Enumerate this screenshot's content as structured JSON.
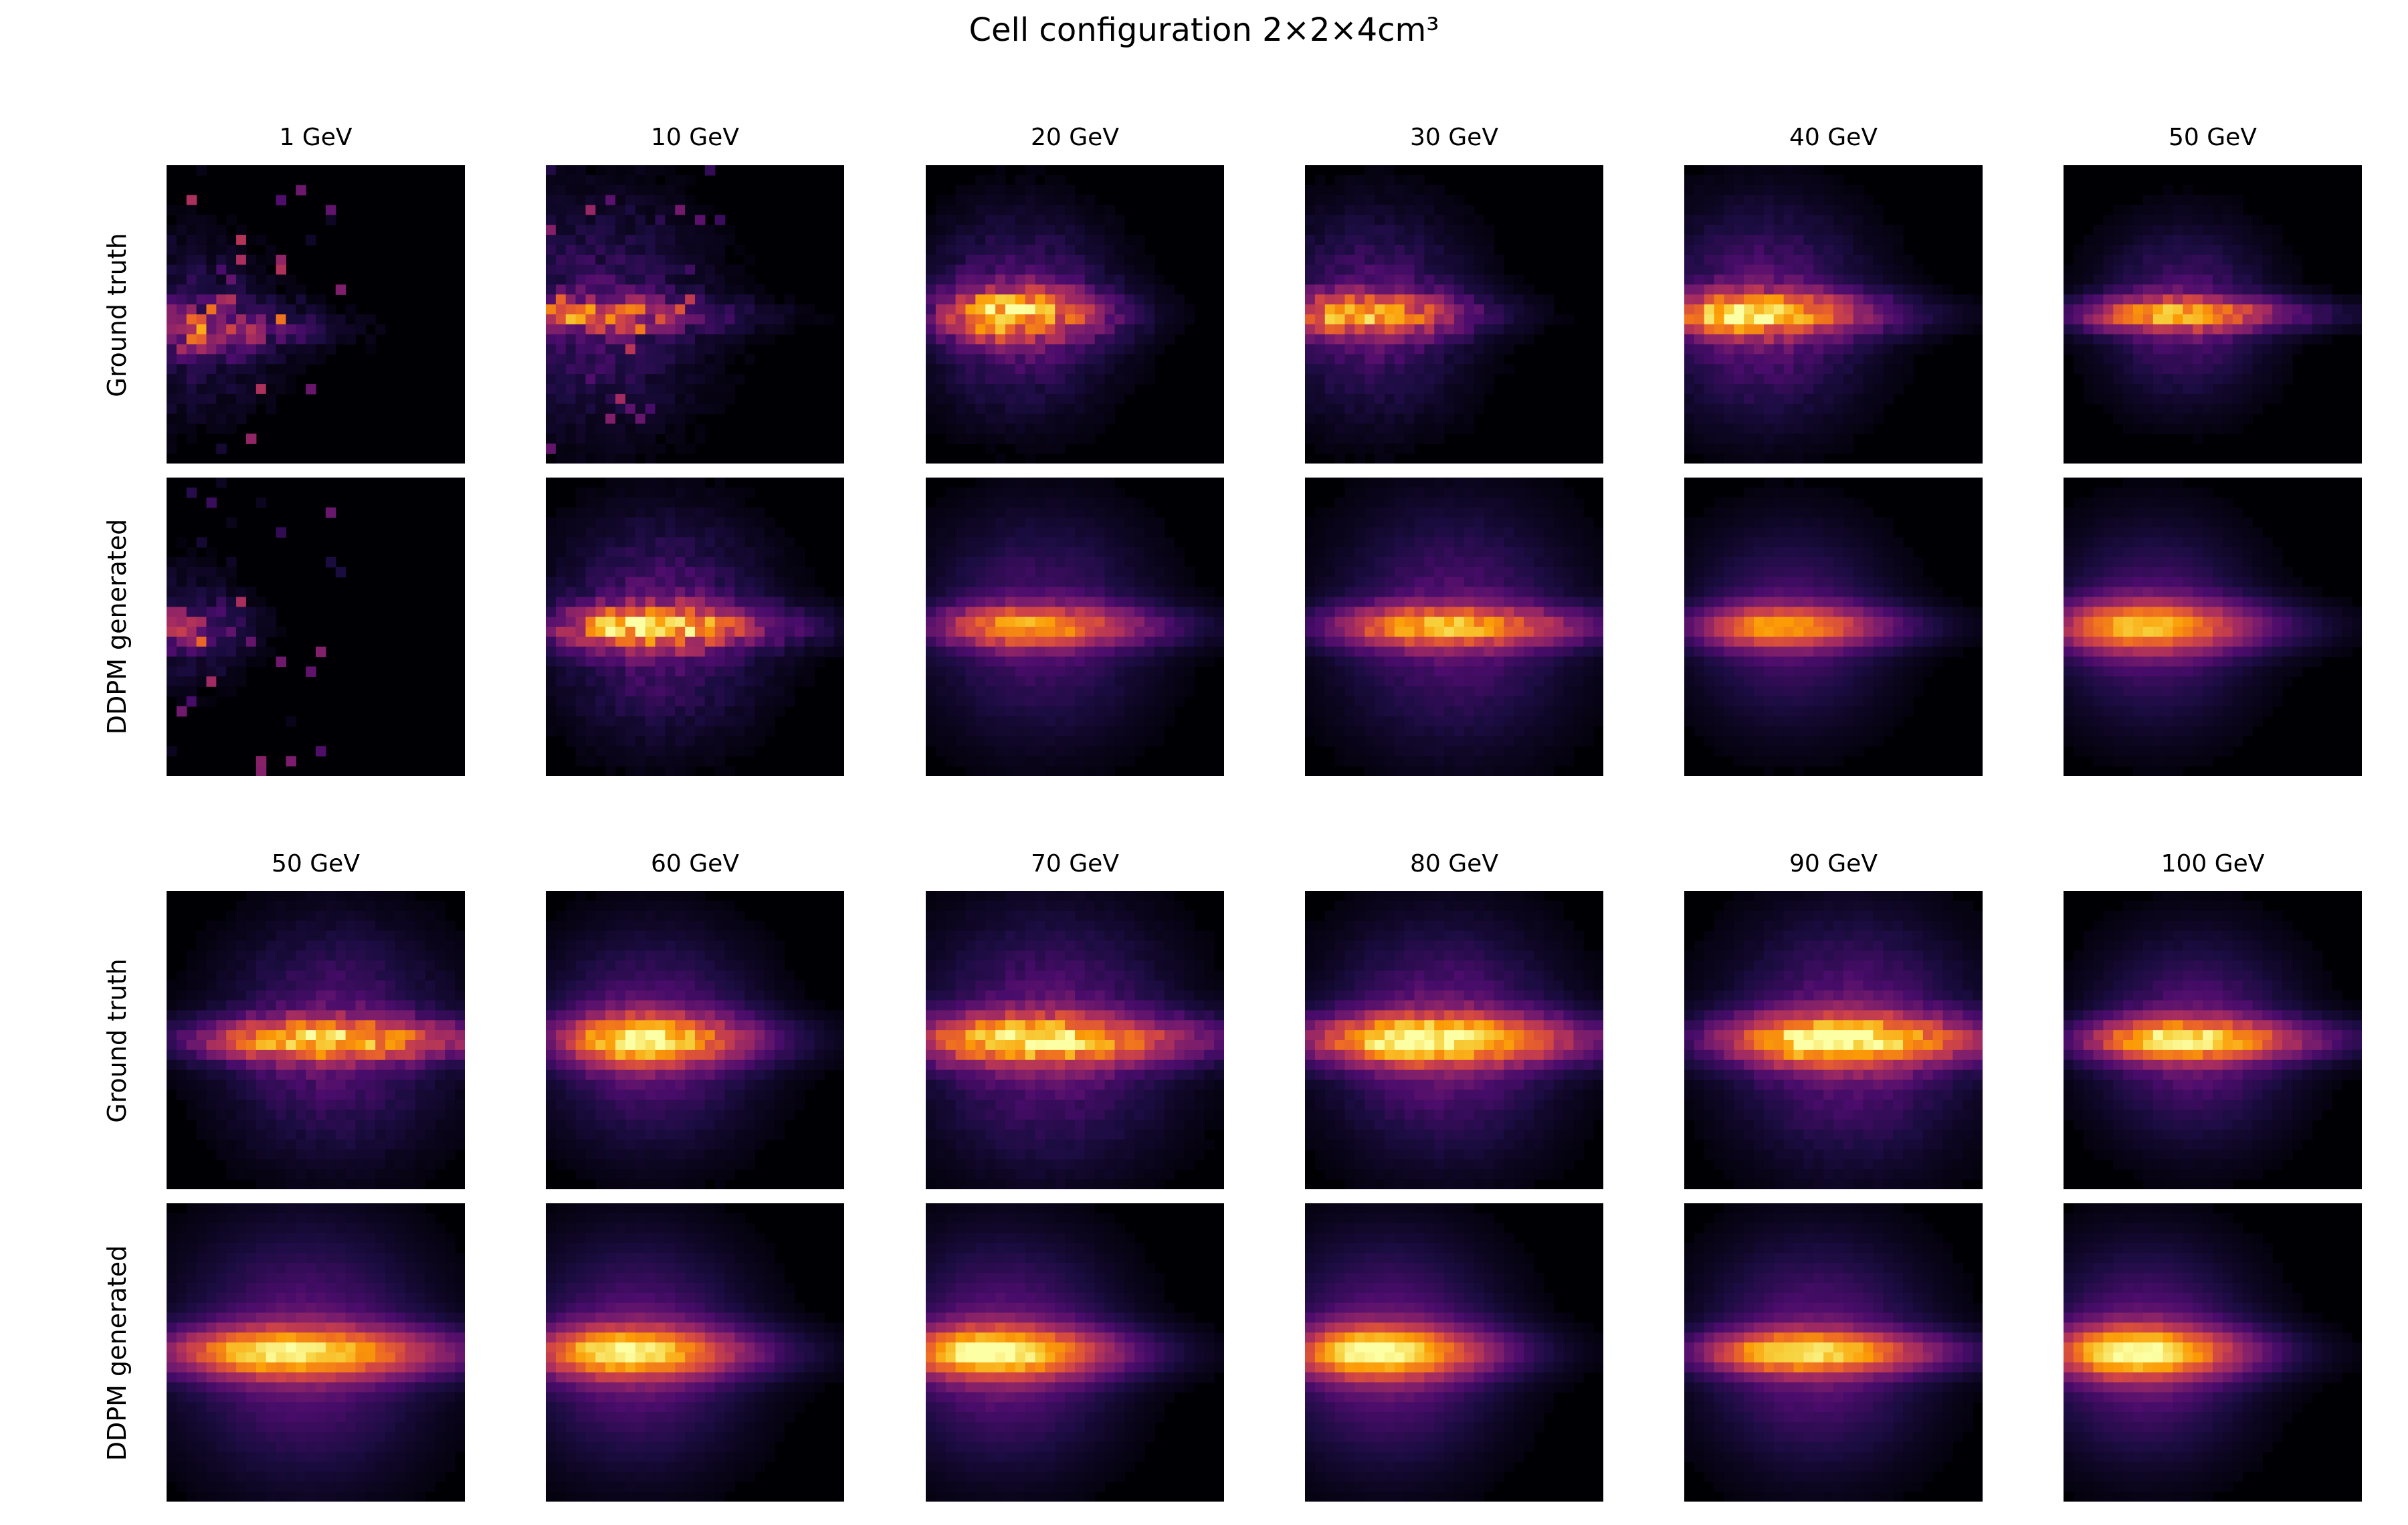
{
  "title": "Cell configuration 2×2×4cm³",
  "row_labels": [
    "Ground truth",
    "DDPM generated"
  ],
  "colormap": "inferno",
  "colormap_stops": [
    "#000004",
    "#1b0c41",
    "#4a0c6b",
    "#781c6d",
    "#a52c60",
    "#cf4446",
    "#ed6925",
    "#fb9b06",
    "#f7d13d",
    "#fcffa4"
  ],
  "chart_data": [
    {
      "type": "heatmap",
      "panel": "top",
      "grid": false,
      "title": "",
      "xlabel": "",
      "ylabel": "",
      "energies_GeV": [
        1,
        10,
        20,
        30,
        40,
        50
      ],
      "column_titles": [
        "1 GeV",
        "10 GeV",
        "20 GeV",
        "30 GeV",
        "40 GeV",
        "50 GeV"
      ],
      "rows": [
        "Ground truth",
        "DDPM generated"
      ],
      "series": [
        {
          "name": "Ground truth",
          "showers": [
            {
              "energy": "1 GeV",
              "peak_x": 0.0,
              "peak_y": 0.55,
              "core_length": 0.5,
              "core_width": 0.05,
              "halo_radius": 0.35,
              "noise": 0.9,
              "intensity": 0.45
            },
            {
              "energy": "10 GeV",
              "peak_x": 0.08,
              "peak_y": 0.5,
              "core_length": 0.55,
              "core_width": 0.04,
              "halo_radius": 0.45,
              "noise": 0.7,
              "intensity": 0.55
            },
            {
              "energy": "20 GeV",
              "peak_x": 0.25,
              "peak_y": 0.5,
              "core_length": 0.4,
              "core_width": 0.06,
              "halo_radius": 0.38,
              "noise": 0.45,
              "intensity": 0.75
            },
            {
              "energy": "30 GeV",
              "peak_x": 0.15,
              "peak_y": 0.5,
              "core_length": 0.45,
              "core_width": 0.05,
              "halo_radius": 0.4,
              "noise": 0.4,
              "intensity": 0.7
            },
            {
              "energy": "40 GeV",
              "peak_x": 0.18,
              "peak_y": 0.5,
              "core_length": 0.55,
              "core_width": 0.05,
              "halo_radius": 0.42,
              "noise": 0.3,
              "intensity": 0.8
            },
            {
              "energy": "50 GeV",
              "peak_x": 0.32,
              "peak_y": 0.5,
              "core_length": 0.55,
              "core_width": 0.04,
              "halo_radius": 0.34,
              "noise": 0.25,
              "intensity": 0.7
            }
          ]
        },
        {
          "name": "DDPM generated",
          "showers": [
            {
              "energy": "1 GeV",
              "peak_x": 0.02,
              "peak_y": 0.5,
              "core_length": 0.25,
              "core_width": 0.05,
              "halo_radius": 0.25,
              "noise": 0.8,
              "intensity": 0.35
            },
            {
              "energy": "10 GeV",
              "peak_x": 0.3,
              "peak_y": 0.5,
              "core_length": 0.55,
              "core_width": 0.05,
              "halo_radius": 0.42,
              "noise": 0.45,
              "intensity": 0.75
            },
            {
              "energy": "20 GeV",
              "peak_x": 0.3,
              "peak_y": 0.5,
              "core_length": 0.55,
              "core_width": 0.05,
              "halo_radius": 0.45,
              "noise": 0.2,
              "intensity": 0.65
            },
            {
              "energy": "30 GeV",
              "peak_x": 0.4,
              "peak_y": 0.5,
              "core_length": 0.65,
              "core_width": 0.05,
              "halo_radius": 0.48,
              "noise": 0.2,
              "intensity": 0.7
            },
            {
              "energy": "40 GeV",
              "peak_x": 0.28,
              "peak_y": 0.5,
              "core_length": 0.5,
              "core_width": 0.05,
              "halo_radius": 0.4,
              "noise": 0.1,
              "intensity": 0.65
            },
            {
              "energy": "50 GeV",
              "peak_x": 0.22,
              "peak_y": 0.5,
              "core_length": 0.55,
              "core_width": 0.06,
              "halo_radius": 0.4,
              "noise": 0.1,
              "intensity": 0.7
            }
          ]
        }
      ]
    },
    {
      "type": "heatmap",
      "panel": "bottom",
      "grid": false,
      "title": "",
      "xlabel": "",
      "ylabel": "",
      "energies_GeV": [
        50,
        60,
        70,
        80,
        90,
        100
      ],
      "column_titles": [
        "50 GeV",
        "60 GeV",
        "70 GeV",
        "80 GeV",
        "90 GeV",
        "100 GeV"
      ],
      "rows": [
        "Ground truth",
        "DDPM generated"
      ],
      "series": [
        {
          "name": "Ground truth",
          "showers": [
            {
              "energy": "50 GeV",
              "peak_x": 0.45,
              "peak_y": 0.5,
              "core_length": 0.75,
              "core_width": 0.05,
              "halo_radius": 0.45,
              "noise": 0.3,
              "intensity": 0.75
            },
            {
              "energy": "60 GeV",
              "peak_x": 0.28,
              "peak_y": 0.5,
              "core_length": 0.5,
              "core_width": 0.06,
              "halo_radius": 0.42,
              "noise": 0.2,
              "intensity": 0.8
            },
            {
              "energy": "70 GeV",
              "peak_x": 0.3,
              "peak_y": 0.5,
              "core_length": 0.75,
              "core_width": 0.06,
              "halo_radius": 0.5,
              "noise": 0.25,
              "intensity": 0.8
            },
            {
              "energy": "80 GeV",
              "peak_x": 0.35,
              "peak_y": 0.5,
              "core_length": 0.75,
              "core_width": 0.06,
              "halo_radius": 0.46,
              "noise": 0.2,
              "intensity": 0.85
            },
            {
              "energy": "90 GeV",
              "peak_x": 0.45,
              "peak_y": 0.5,
              "core_length": 0.7,
              "core_width": 0.06,
              "halo_radius": 0.48,
              "noise": 0.2,
              "intensity": 0.85
            },
            {
              "energy": "100 GeV",
              "peak_x": 0.35,
              "peak_y": 0.5,
              "core_length": 0.6,
              "core_width": 0.05,
              "halo_radius": 0.4,
              "noise": 0.15,
              "intensity": 0.8
            }
          ]
        },
        {
          "name": "DDPM generated",
          "showers": [
            {
              "energy": "50 GeV",
              "peak_x": 0.35,
              "peak_y": 0.5,
              "core_length": 0.75,
              "core_width": 0.06,
              "halo_radius": 0.5,
              "noise": 0.1,
              "intensity": 0.8
            },
            {
              "energy": "60 GeV",
              "peak_x": 0.22,
              "peak_y": 0.5,
              "core_length": 0.55,
              "core_width": 0.06,
              "halo_radius": 0.45,
              "noise": 0.1,
              "intensity": 0.8
            },
            {
              "energy": "70 GeV",
              "peak_x": 0.18,
              "peak_y": 0.5,
              "core_length": 0.55,
              "core_width": 0.06,
              "halo_radius": 0.45,
              "noise": 0.1,
              "intensity": 0.85
            },
            {
              "energy": "80 GeV",
              "peak_x": 0.2,
              "peak_y": 0.5,
              "core_length": 0.5,
              "core_width": 0.06,
              "halo_radius": 0.45,
              "noise": 0.08,
              "intensity": 0.85
            },
            {
              "energy": "90 GeV",
              "peak_x": 0.35,
              "peak_y": 0.5,
              "core_length": 0.6,
              "core_width": 0.05,
              "halo_radius": 0.45,
              "noise": 0.1,
              "intensity": 0.8
            },
            {
              "energy": "100 GeV",
              "peak_x": 0.2,
              "peak_y": 0.5,
              "core_length": 0.5,
              "core_width": 0.06,
              "halo_radius": 0.42,
              "noise": 0.08,
              "intensity": 0.85
            }
          ]
        }
      ]
    }
  ]
}
